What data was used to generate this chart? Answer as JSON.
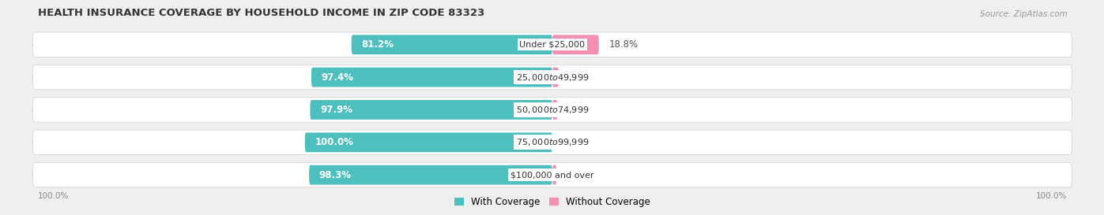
{
  "title": "HEALTH INSURANCE COVERAGE BY HOUSEHOLD INCOME IN ZIP CODE 83323",
  "source": "Source: ZipAtlas.com",
  "categories": [
    "Under $25,000",
    "$25,000 to $49,999",
    "$50,000 to $74,999",
    "$75,000 to $99,999",
    "$100,000 and over"
  ],
  "with_coverage": [
    81.2,
    97.4,
    97.9,
    100.0,
    98.3
  ],
  "without_coverage": [
    18.8,
    2.6,
    2.1,
    0.0,
    1.7
  ],
  "color_with": "#4dbfbf",
  "color_without": "#f48fb1",
  "bg_color": "#efefef",
  "bar_bg": "#ffffff",
  "title_fontsize": 9.5,
  "label_fontsize": 8.5,
  "legend_fontsize": 8.5,
  "bar_height": 0.6,
  "figsize": [
    14.06,
    2.69
  ]
}
